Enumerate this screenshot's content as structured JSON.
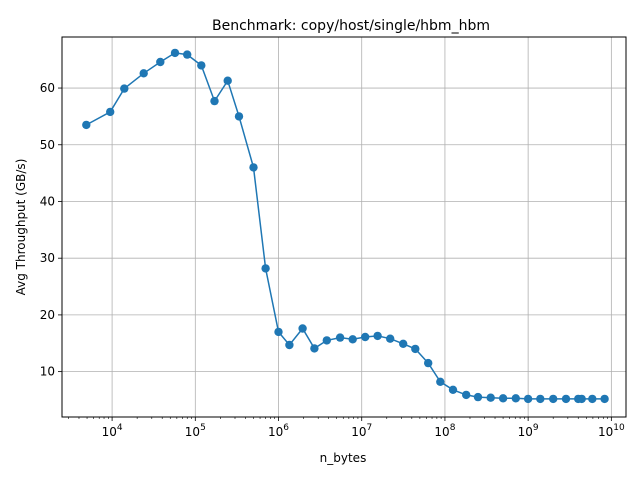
{
  "chart_data": {
    "type": "line",
    "title": "Benchmark: copy/host/single/hbm_hbm",
    "xlabel": "n_bytes",
    "ylabel": "Avg Throughput (GB/s)",
    "xscale": "log",
    "xlim": [
      2500,
      15000000000
    ],
    "ylim": [
      2,
      69
    ],
    "xticks": [
      10000,
      100000,
      1000000,
      10000000,
      100000000,
      1000000000,
      10000000000
    ],
    "xtick_labels": [
      {
        "base": "10",
        "exp": "4"
      },
      {
        "base": "10",
        "exp": "5"
      },
      {
        "base": "10",
        "exp": "6"
      },
      {
        "base": "10",
        "exp": "7"
      },
      {
        "base": "10",
        "exp": "8"
      },
      {
        "base": "10",
        "exp": "9"
      },
      {
        "base": "10",
        "exp": "10"
      }
    ],
    "yticks": [
      10,
      20,
      30,
      40,
      50,
      60
    ],
    "ytick_labels": [
      "10",
      "20",
      "30",
      "40",
      "50",
      "60"
    ],
    "grid": true,
    "series_color": "#1f77b4",
    "series": [
      {
        "marker": "circle",
        "x": [
          4900,
          9500,
          14000,
          24000,
          38000,
          57000,
          80000,
          118000,
          170000,
          245000,
          335000,
          500000,
          700000,
          1000000,
          1350000,
          1950000,
          2700000,
          3800000,
          5500000,
          7800000,
          11000000,
          15500000,
          22000000,
          31500000,
          44000000,
          63000000,
          88000000,
          125000000,
          180000000,
          250000000,
          355000000,
          500000000,
          710000000,
          1000000000,
          1400000000,
          2000000000,
          2850000000,
          4000000000,
          4400000000,
          5900000000,
          8300000000
        ],
        "y": [
          53.5,
          55.8,
          59.9,
          62.6,
          64.6,
          66.2,
          65.9,
          64.0,
          57.7,
          61.3,
          55.0,
          46.0,
          28.2,
          17.0,
          14.7,
          17.6,
          14.1,
          15.5,
          16.0,
          15.7,
          16.1,
          16.3,
          15.8,
          14.9,
          14.0,
          11.5,
          8.2,
          6.8,
          5.9,
          5.5,
          5.4,
          5.3,
          5.3,
          5.2,
          5.2,
          5.2,
          5.2,
          5.2,
          5.2,
          5.2,
          5.2
        ]
      }
    ]
  }
}
